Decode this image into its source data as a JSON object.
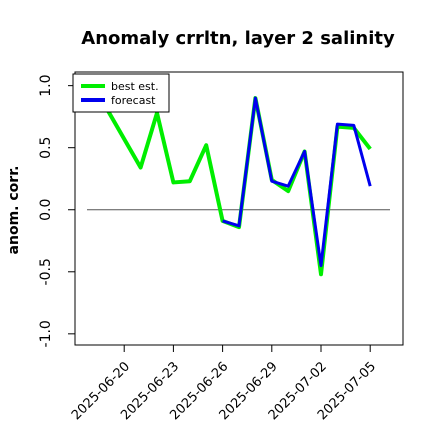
{
  "chart_data": {
    "type": "line",
    "title": "Anomaly crrltn, layer 2 salinity",
    "ylabel": "anom. corr.",
    "x": [
      "2025-06-19",
      "2025-06-21",
      "2025-06-22",
      "2025-06-23",
      "2025-06-24",
      "2025-06-25",
      "2025-06-26",
      "2025-06-27",
      "2025-06-28",
      "2025-06-29",
      "2025-06-30",
      "2025-07-01",
      "2025-07-02",
      "2025-07-03",
      "2025-07-04",
      "2025-07-05"
    ],
    "series": [
      {
        "name": "best est.",
        "color": "#00ee00",
        "values": [
          0.8,
          0.34,
          0.78,
          0.22,
          0.23,
          0.52,
          -0.09,
          -0.14,
          0.9,
          0.24,
          0.15,
          0.47,
          -0.52,
          0.67,
          0.66,
          0.49
        ]
      },
      {
        "name": "forecast",
        "color": "#0000ee",
        "values": [
          null,
          null,
          null,
          null,
          null,
          null,
          -0.09,
          -0.13,
          0.9,
          0.23,
          0.19,
          0.47,
          -0.45,
          0.69,
          0.68,
          0.19
        ]
      }
    ],
    "xlim": [
      "2025-06-17",
      "2025-07-07"
    ],
    "xticks": [
      "2025-06-20",
      "2025-06-23",
      "2025-06-26",
      "2025-06-29",
      "2025-07-02",
      "2025-07-05"
    ],
    "xtick_colors": [
      "#000000",
      "#000000",
      "#228b22",
      "#000000",
      "#000000",
      "#000000"
    ],
    "ylim": [
      -1.09,
      1.11
    ],
    "yticks": [
      {
        "value": -1,
        "label": "-1.0"
      },
      {
        "value": -0.5,
        "label": "-0.5"
      },
      {
        "value": 0,
        "label": "0.0"
      },
      {
        "value": 0.5,
        "label": "0.5"
      },
      {
        "value": 1,
        "label": "1.0"
      }
    ],
    "hline": 0,
    "legend": "upper left"
  }
}
